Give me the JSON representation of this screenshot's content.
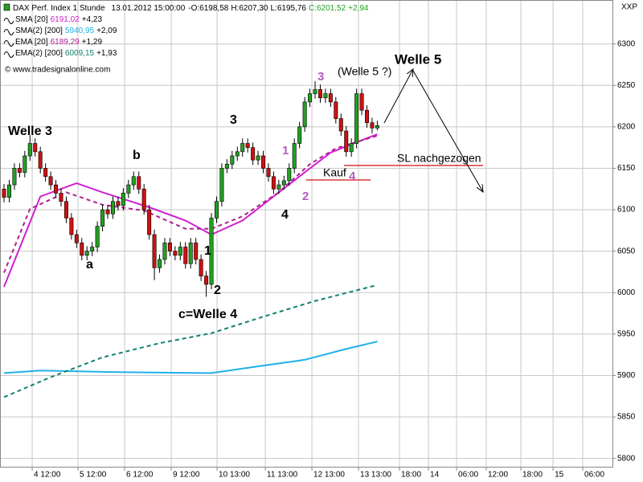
{
  "chart_data": {
    "type": "candlestick",
    "header": {
      "name": "DAX Perf. Index 1 Stunde",
      "datetime": "13.01.2012 15:00:00",
      "open": "-O:6198,58",
      "high": "H:6207,30",
      "low": "L:6195,76",
      "close": "C:6201,52",
      "change": "+2,94"
    },
    "symbol": "XXP",
    "watermark": "© www.tradesignalonline.com",
    "up_color": "#22a022",
    "down_color": "#d01010",
    "grid": true,
    "xlim": [
      -0.78,
      117.36
    ],
    "ylim": [
      5789,
      6353
    ],
    "yticks": [
      5800,
      5850,
      5900,
      5950,
      6000,
      6050,
      6100,
      6150,
      6200,
      6250,
      6300
    ],
    "xticks": [
      {
        "value": 5.43,
        "label": "4 12:00"
      },
      {
        "value": 14.26,
        "label": "5 12:00"
      },
      {
        "value": 23.26,
        "label": "6 12:00"
      },
      {
        "value": 32.25,
        "label": "9 12:00"
      },
      {
        "value": 41.09,
        "label": "10 13:00"
      },
      {
        "value": 50.39,
        "label": "11 13:00"
      },
      {
        "value": 59.38,
        "label": "12 13:00"
      },
      {
        "value": 68.37,
        "label": "13 13:00"
      },
      {
        "value": 76.28,
        "label": "18:00"
      },
      {
        "value": 81.86,
        "label": "14"
      },
      {
        "value": 87.29,
        "label": "06:00"
      },
      {
        "value": 93.02,
        "label": "12:00"
      },
      {
        "value": 99.69,
        "label": "18:00"
      },
      {
        "value": 105.9,
        "label": "15"
      },
      {
        "value": 111.63,
        "label": "06:00"
      }
    ],
    "open": [
      6125,
      6115,
      6130,
      6150,
      6145,
      6165,
      6180,
      6170,
      6150,
      6140,
      6130,
      6120,
      6110,
      6090,
      6070,
      6060,
      6045,
      6050,
      6055,
      6080,
      6100,
      6095,
      6110,
      6105,
      6120,
      6130,
      6140,
      6125,
      6100,
      6070,
      6030,
      6040,
      6060,
      6050,
      6045,
      6055,
      6035,
      6060,
      6040,
      6020,
      6010,
      6090,
      6110,
      6150,
      6155,
      6165,
      6170,
      6180,
      6175,
      6160,
      6165,
      6150,
      6140,
      6125,
      6130,
      6135,
      6150,
      6180,
      6200,
      6230,
      6240,
      6245,
      6235,
      6240,
      6230,
      6210,
      6195,
      6170,
      6180,
      6240,
      6220,
      6205,
      6198.58
    ],
    "high": [
      6131,
      6136,
      6156,
      6156,
      6171,
      6190,
      6186,
      6176,
      6156,
      6146,
      6136,
      6126,
      6116,
      6096,
      6076,
      6066,
      6056,
      6061,
      6086,
      6106,
      6106,
      6116,
      6116,
      6126,
      6136,
      6146,
      6146,
      6131,
      6106,
      6076,
      6046,
      6066,
      6066,
      6056,
      6061,
      6061,
      6066,
      6066,
      6046,
      6026,
      6096,
      6116,
      6156,
      6161,
      6171,
      6176,
      6186,
      6186,
      6181,
      6171,
      6171,
      6156,
      6146,
      6136,
      6141,
      6156,
      6186,
      6206,
      6236,
      6246,
      6255,
      6251,
      6246,
      6246,
      6236,
      6216,
      6201,
      6186,
      6246,
      6246,
      6226,
      6211,
      6207.3
    ],
    "low": [
      6109,
      6109,
      6124,
      6139,
      6139,
      6159,
      6164,
      6144,
      6134,
      6124,
      6114,
      6104,
      6084,
      6064,
      6054,
      6039,
      6039,
      6044,
      6049,
      6074,
      6089,
      6089,
      6099,
      6099,
      6114,
      6124,
      6119,
      6094,
      6064,
      6015,
      6024,
      6034,
      6044,
      6039,
      6039,
      6029,
      6029,
      6034,
      6014,
      5995,
      6004,
      6084,
      6104,
      6144,
      6149,
      6159,
      6164,
      6169,
      6154,
      6154,
      6144,
      6134,
      6119,
      6119,
      6124,
      6129,
      6144,
      6174,
      6194,
      6224,
      6234,
      6229,
      6229,
      6224,
      6204,
      6189,
      6164,
      6164,
      6174,
      6214,
      6199,
      6192,
      6195.76
    ],
    "close": [
      6115,
      6130,
      6150,
      6145,
      6165,
      6180,
      6170,
      6150,
      6140,
      6130,
      6120,
      6110,
      6090,
      6070,
      6060,
      6045,
      6050,
      6055,
      6080,
      6100,
      6095,
      6110,
      6105,
      6120,
      6130,
      6140,
      6125,
      6100,
      6070,
      6030,
      6040,
      6060,
      6050,
      6045,
      6055,
      6035,
      6060,
      6040,
      6020,
      6010,
      6090,
      6110,
      6150,
      6155,
      6165,
      6170,
      6180,
      6175,
      6160,
      6165,
      6150,
      6140,
      6125,
      6130,
      6135,
      6150,
      6180,
      6200,
      6230,
      6240,
      6245,
      6235,
      6240,
      6230,
      6210,
      6195,
      6170,
      6180,
      6240,
      6220,
      6205,
      6198.58,
      6201.52
    ],
    "series": [
      {
        "name": "SMA [20]",
        "last": "6191,02",
        "change": "+4,23",
        "color": "#d020d0",
        "dash": false,
        "x": [
          0,
          7,
          14,
          19,
          28,
          35,
          40,
          46,
          52,
          58,
          63,
          67,
          72
        ],
        "values": [
          6007,
          6116,
          6132,
          6121,
          6103,
          6087,
          6070,
          6087,
          6116,
          6145,
          6169,
          6179,
          6191.02
        ]
      },
      {
        "name": "SMA(2) [200]",
        "last": "5940,95",
        "change": "+2,09",
        "color": "#20b0e8",
        "dash": false,
        "x": [
          0,
          7,
          22,
          40,
          50,
          58,
          66,
          72
        ],
        "values": [
          5903,
          5906,
          5904,
          5903,
          5912,
          5919,
          5932,
          5940.95
        ]
      },
      {
        "name": "EMA [20]",
        "last": "6189,29",
        "change": "+1,29",
        "color": "#b02090",
        "dash": true,
        "x": [
          0,
          5,
          12,
          19,
          27,
          35,
          40,
          46,
          53,
          59,
          64,
          72
        ],
        "values": [
          6024,
          6101,
          6121,
          6106,
          6099,
          6077,
          6077,
          6092,
          6121,
          6155,
          6174,
          6189.29
        ]
      },
      {
        "name": "EMA(2) [200]",
        "last": "6009,15",
        "change": "+1,93",
        "color": "#108070",
        "dash": true,
        "x": [
          0,
          9,
          19,
          30,
          40,
          50,
          60,
          72
        ],
        "values": [
          5874,
          5898,
          5922,
          5939,
          5951,
          5971,
          5990,
          6009.15
        ]
      }
    ],
    "annotations": [
      "Welle 3",
      "a",
      "b",
      "c=Welle 4",
      "1",
      "2",
      "3",
      "4",
      "1",
      "2",
      "3",
      "4",
      "(Welle 5 ?)",
      "Welle 5",
      "Kauf",
      "SL nachgezogen"
    ]
  }
}
